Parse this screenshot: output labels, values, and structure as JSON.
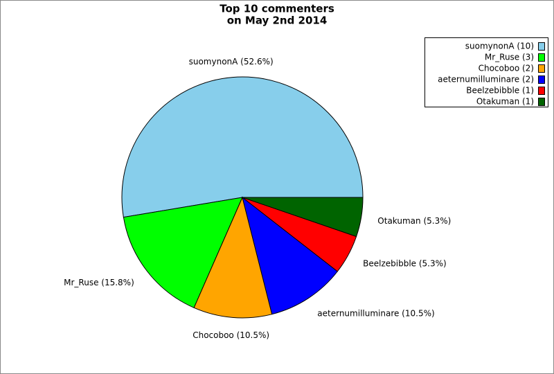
{
  "chart_data": {
    "type": "pie",
    "title": [
      "Top 10 commenters",
      "on May 2nd 2014"
    ],
    "values": [
      10,
      3,
      2,
      2,
      1,
      1
    ],
    "labels": [
      "suomynonA (52.6%)",
      "Mr_Ruse (15.8%)",
      "Chocoboo (10.5%)",
      "aeternumilluminare (10.5%)",
      "Beelzebibble (5.3%)",
      "Otakuman (5.3%)"
    ],
    "legend": [
      "suomynonA (10)",
      "Mr_Ruse (3)",
      "Chocoboo (2)",
      "aeternumilluminare (2)",
      "Beelzebibble (1)",
      "Otakuman (1)"
    ],
    "colors": [
      "#87ceeb",
      "#00ff00",
      "#ffa500",
      "#0000ff",
      "#ff0000",
      "#006400"
    ],
    "legend_position": "upper right"
  }
}
